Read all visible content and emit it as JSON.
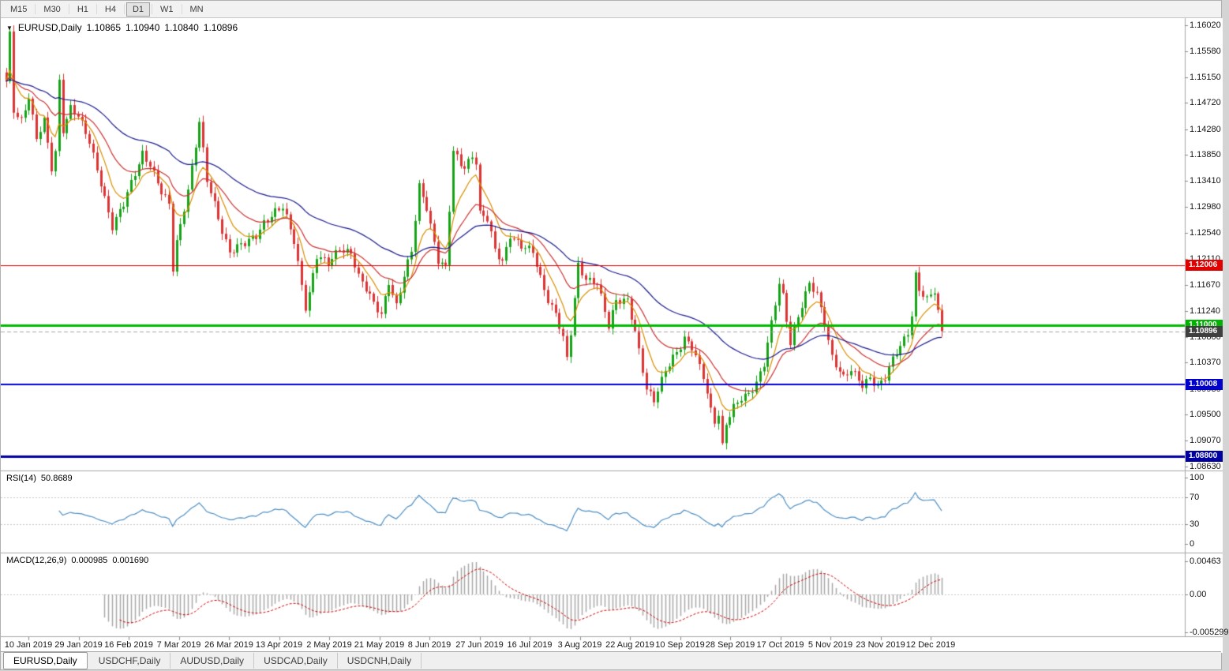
{
  "toolbar": {
    "timeframes": [
      "M15",
      "M30",
      "H1",
      "H4",
      "D1",
      "W1",
      "MN"
    ],
    "active": "D1"
  },
  "header": {
    "dropdown_icon": "▼",
    "title": "EURUSD,Daily",
    "open": "1.10865",
    "high": "1.10940",
    "low": "1.10840",
    "close": "1.10896"
  },
  "rsi": {
    "label": "RSI(14)",
    "value": "50.8689",
    "period": 14,
    "line_color": "#4d8fc4",
    "levels": [
      70,
      30
    ],
    "ticks": [
      {
        "label": "100",
        "v": 100
      },
      {
        "label": "70",
        "v": 70
      },
      {
        "label": "30",
        "v": 30
      },
      {
        "label": "0",
        "v": 0
      }
    ]
  },
  "macd": {
    "label": "MACD(12,26,9)",
    "value_main": "0.000985",
    "value_signal": "0.001690",
    "histogram_color": "#a8a8a8",
    "signal_color": "#cc0000",
    "ticks": [
      {
        "label": "0.00463",
        "v": 0.00463
      },
      {
        "label": "0.00",
        "v": 0
      },
      {
        "label": "-0.005299",
        "v": -0.005299
      }
    ]
  },
  "tabs": [
    {
      "label": "EURUSD,Daily",
      "active": true
    },
    {
      "label": "USDCHF,Daily",
      "active": false
    },
    {
      "label": "AUDUSD,Daily",
      "active": false
    },
    {
      "label": "USDCAD,Daily",
      "active": false
    },
    {
      "label": "USDCNH,Daily",
      "active": false
    }
  ],
  "chart_data": {
    "type": "candlestick",
    "symbol": "EURUSD",
    "timeframe": "Daily",
    "bars": 248,
    "ylim": [
      1.0863,
      1.1602
    ],
    "y_ticks": [
      "1.16020",
      "1.15580",
      "1.15150",
      "1.14720",
      "1.14280",
      "1.13850",
      "1.13410",
      "1.12980",
      "1.12540",
      "1.12110",
      "1.11670",
      "1.11240",
      "1.10800",
      "1.10370",
      "1.09930",
      "1.09500",
      "1.09070",
      "1.08630"
    ],
    "time_labels": [
      "10 Jan 2019",
      "29 Jan 2019",
      "16 Feb 2019",
      "7 Mar 2019",
      "26 Mar 2019",
      "13 Apr 2019",
      "2 May 2019",
      "21 May 2019",
      "8 Jun 2019",
      "27 Jun 2019",
      "16 Jul 2019",
      "3 Aug 2019",
      "22 Aug 2019",
      "10 Sep 2019",
      "28 Sep 2019",
      "17 Oct 2019",
      "5 Nov 2019",
      "23 Nov 2019",
      "12 Dec 2019"
    ],
    "candle_up_color": "#17a317",
    "candle_down_color": "#dd3434",
    "moving_averages": [
      {
        "period": 8,
        "color": "#d89000"
      },
      {
        "period": 20,
        "color": "#cc3333"
      },
      {
        "period": 50,
        "color": "#1a1a8c"
      }
    ],
    "horizontal_lines": [
      {
        "price": 1.12006,
        "label": "1.12006",
        "line_color": "#e00000",
        "tag_color": "#e00000",
        "width": 1,
        "dashed": false
      },
      {
        "price": 1.11,
        "label": "1.11000",
        "line_color": "#00bb00",
        "tag_color": "#00b300",
        "width": 3,
        "dashed": false
      },
      {
        "price": 1.10896,
        "label": "1.10896",
        "line_color": "#a8a8a8",
        "tag_color": "#3f3f3f",
        "width": 1,
        "dashed": true
      },
      {
        "price": 1.10008,
        "label": "1.10008",
        "line_color": "#0000d8",
        "tag_color": "#0000cc",
        "width": 2,
        "dashed": false
      },
      {
        "price": 1.088,
        "label": "1.08800",
        "line_color": "#0000a0",
        "tag_color": "#0000a0",
        "width": 3,
        "dashed": false
      }
    ],
    "macd_ylim": [
      -0.005299,
      0.00463
    ],
    "current_close": 1.10896,
    "rsi_current": 50.8689,
    "macd_current": [
      0.000985,
      0.00169
    ],
    "close_anchors": [
      [
        0,
        1.1505
      ],
      [
        1,
        1.1585
      ],
      [
        2,
        1.146
      ],
      [
        4,
        1.1445
      ],
      [
        6,
        1.1485
      ],
      [
        8,
        1.141
      ],
      [
        10,
        1.144
      ],
      [
        12,
        1.1362
      ],
      [
        13,
        1.139
      ],
      [
        14,
        1.151
      ],
      [
        15,
        1.143
      ],
      [
        17,
        1.1465
      ],
      [
        19,
        1.1448
      ],
      [
        22,
        1.1405
      ],
      [
        25,
        1.134
      ],
      [
        28,
        1.1265
      ],
      [
        31,
        1.13
      ],
      [
        33,
        1.1337
      ],
      [
        36,
        1.139
      ],
      [
        38,
        1.137
      ],
      [
        41,
        1.132
      ],
      [
        43,
        1.13
      ],
      [
        44,
        1.1194
      ],
      [
        45,
        1.124
      ],
      [
        48,
        1.1328
      ],
      [
        51,
        1.1438
      ],
      [
        53,
        1.134
      ],
      [
        55,
        1.1302
      ],
      [
        57,
        1.126
      ],
      [
        59,
        1.1224
      ],
      [
        61,
        1.123
      ],
      [
        63,
        1.1234
      ],
      [
        66,
        1.125
      ],
      [
        68,
        1.1274
      ],
      [
        71,
        1.129
      ],
      [
        73,
        1.1295
      ],
      [
        76,
        1.124
      ],
      [
        79,
        1.1133
      ],
      [
        80,
        1.1155
      ],
      [
        82,
        1.1215
      ],
      [
        85,
        1.12
      ],
      [
        88,
        1.123
      ],
      [
        91,
        1.1223
      ],
      [
        93,
        1.118
      ],
      [
        95,
        1.1158
      ],
      [
        97,
        1.1135
      ],
      [
        99,
        1.112
      ],
      [
        101,
        1.1175
      ],
      [
        103,
        1.1131
      ],
      [
        105,
        1.118
      ],
      [
        107,
        1.1222
      ],
      [
        109,
        1.1334
      ],
      [
        111,
        1.13
      ],
      [
        114,
        1.1207
      ],
      [
        116,
        1.1193
      ],
      [
        118,
        1.139
      ],
      [
        120,
        1.1372
      ],
      [
        121,
        1.1367
      ],
      [
        123,
        1.1385
      ],
      [
        124,
        1.1373
      ],
      [
        125,
        1.1285
      ],
      [
        127,
        1.1275
      ],
      [
        129,
        1.1225
      ],
      [
        131,
        1.1208
      ],
      [
        133,
        1.1253
      ],
      [
        136,
        1.123
      ],
      [
        139,
        1.1221
      ],
      [
        141,
        1.118
      ],
      [
        143,
        1.1145
      ],
      [
        145,
        1.112
      ],
      [
        147,
        1.1076
      ],
      [
        148,
        1.104
      ],
      [
        149,
        1.1085
      ],
      [
        151,
        1.12
      ],
      [
        153,
        1.118
      ],
      [
        156,
        1.1171
      ],
      [
        159,
        1.1095
      ],
      [
        161,
        1.114
      ],
      [
        164,
        1.1145
      ],
      [
        166,
        1.109
      ],
      [
        169,
        1.0989
      ],
      [
        171,
        1.0972
      ],
      [
        174,
        1.1028
      ],
      [
        176,
        1.1048
      ],
      [
        178,
        1.1063
      ],
      [
        179,
        1.1074
      ],
      [
        181,
        1.106
      ],
      [
        184,
        1.1017
      ],
      [
        186,
        1.096
      ],
      [
        187,
        1.0941
      ],
      [
        188,
        1.095
      ],
      [
        189,
        1.0895
      ],
      [
        190,
        1.0932
      ],
      [
        192,
        1.096
      ],
      [
        194,
        1.0979
      ],
      [
        196,
        1.0988
      ],
      [
        198,
        1.1004
      ],
      [
        200,
        1.1033
      ],
      [
        202,
        1.11
      ],
      [
        204,
        1.117
      ],
      [
        205,
        1.115
      ],
      [
        207,
        1.1073
      ],
      [
        209,
        1.1115
      ],
      [
        212,
        1.1166
      ],
      [
        214,
        1.115
      ],
      [
        216,
        1.1105
      ],
      [
        218,
        1.1049
      ],
      [
        221,
        1.101
      ],
      [
        223,
        1.1022
      ],
      [
        226,
        1.1
      ],
      [
        228,
        1.1015
      ],
      [
        230,
        1.0998
      ],
      [
        232,
        1.101
      ],
      [
        234,
        1.104
      ],
      [
        236,
        1.1065
      ],
      [
        238,
        1.109
      ],
      [
        239,
        1.112
      ],
      [
        240,
        1.1185
      ],
      [
        241,
        1.116
      ],
      [
        243,
        1.114
      ],
      [
        245,
        1.1155
      ],
      [
        246,
        1.112
      ],
      [
        247,
        1.10896
      ]
    ]
  }
}
